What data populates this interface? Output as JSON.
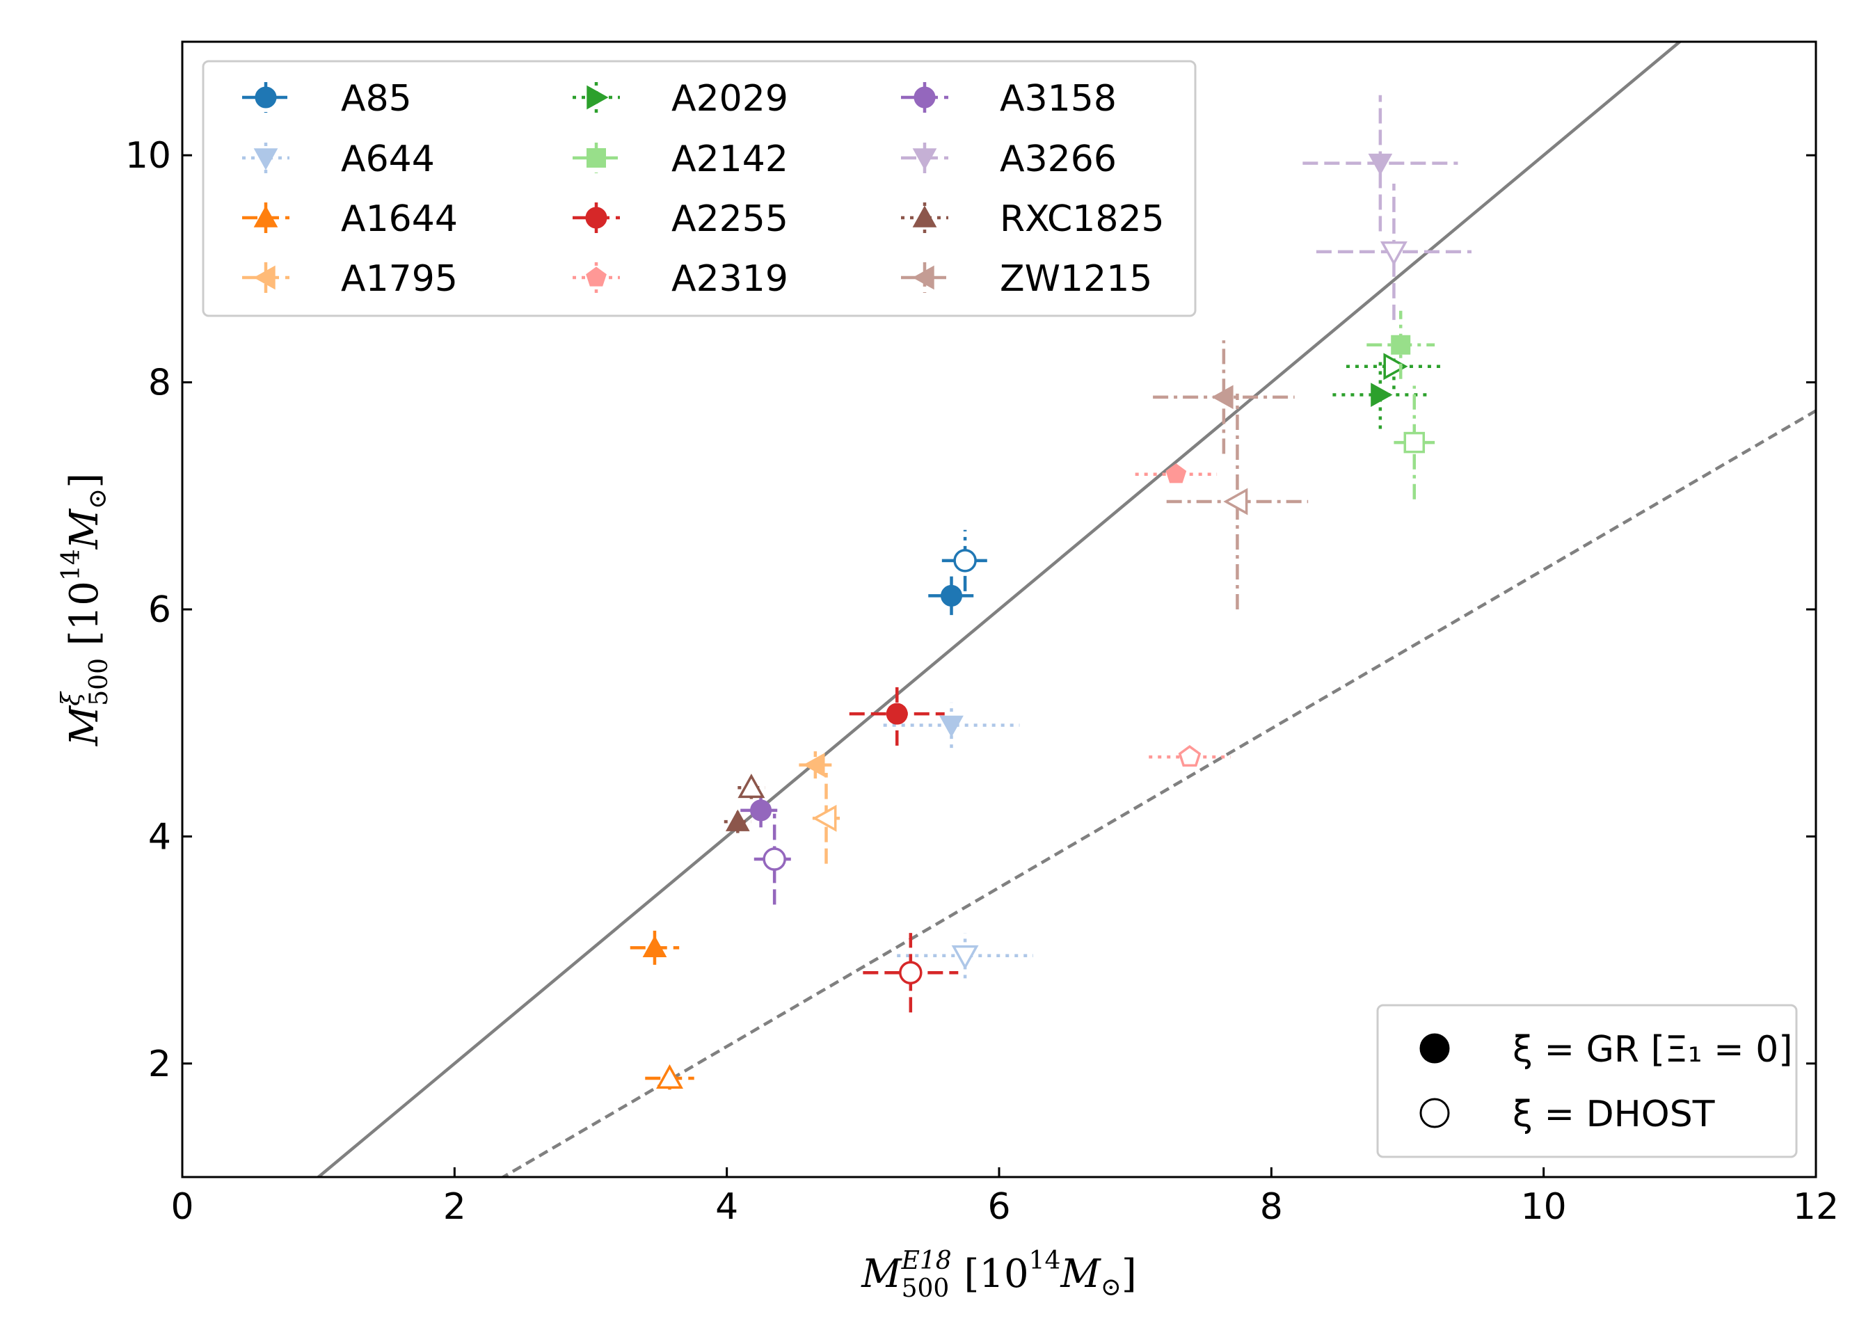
{
  "chart_data": {
    "type": "scatter",
    "xlabel": {
      "sym": "M",
      "sup": "E18",
      "sub": "500",
      "units_open": " [10",
      "units_exp": "14",
      "units_sym": "M",
      "units_sub": "⊙",
      "units_close": "]"
    },
    "ylabel": {
      "sym": "M",
      "sup": "ξ",
      "sub": "500",
      "units_open": " [10",
      "units_exp": "14",
      "units_sym": "M",
      "units_sub": "⊙",
      "units_close": "]"
    },
    "xlim": [
      0,
      12
    ],
    "ylim": [
      1.0,
      11.0
    ],
    "xticks": [
      0,
      2,
      4,
      6,
      8,
      10,
      12
    ],
    "yticks": [
      2,
      4,
      6,
      8,
      10
    ],
    "xtick_labels": [
      "0",
      "2",
      "4",
      "6",
      "8",
      "10",
      "12"
    ],
    "ytick_labels": [
      "2",
      "4",
      "6",
      "8",
      "10"
    ],
    "lines": [
      {
        "name": "one-to-one",
        "style": "solid",
        "color": "#808080",
        "slope": 1.0,
        "intercept": 0.0
      },
      {
        "name": "gr-dhost-relation",
        "style": "dashed",
        "color": "#808080",
        "slope": 0.7,
        "intercept": -0.65
      }
    ],
    "series": [
      {
        "name": "A85",
        "color": "#1f77b4",
        "marker": "circle",
        "linestyle": "dashdot",
        "gr": {
          "x": 5.65,
          "y": 6.12,
          "xerr": 0.17,
          "yerr": 0.17
        },
        "dhost": {
          "x": 5.75,
          "y": 6.43,
          "xerr": 0.17,
          "yerr": 0.27
        }
      },
      {
        "name": "A644",
        "color": "#aec7e8",
        "marker": "triangle-down",
        "linestyle": "dotted",
        "gr": {
          "x": 5.65,
          "y": 4.98,
          "xerr": 0.5,
          "yerr": 0.2
        },
        "dhost": {
          "x": 5.75,
          "y": 2.95,
          "xerr": 0.5,
          "yerr": 0.2
        }
      },
      {
        "name": "A1644",
        "color": "#ff7f0e",
        "marker": "triangle-up",
        "linestyle": "dashed",
        "gr": {
          "x": 3.47,
          "y": 3.02,
          "xerr": 0.18,
          "yerr": 0.15
        },
        "dhost": {
          "x": 3.58,
          "y": 1.87,
          "xerr": 0.18,
          "yerr": 0.1
        }
      },
      {
        "name": "A1795",
        "color": "#ffbb78",
        "marker": "triangle-left",
        "linestyle": "dashed",
        "gr": {
          "x": 4.65,
          "y": 4.63,
          "xerr": 0.12,
          "yerr": 0.12
        },
        "dhost": {
          "x": 4.73,
          "y": 4.16,
          "xerr": 0.1,
          "yerr": 0.4
        }
      },
      {
        "name": "A2029",
        "color": "#2ca02c",
        "marker": "triangle-right",
        "linestyle": "dotted",
        "gr": {
          "x": 8.8,
          "y": 7.89,
          "xerr": 0.35,
          "yerr": 0.3
        },
        "dhost": {
          "x": 8.9,
          "y": 8.14,
          "xerr": 0.35,
          "yerr": 0.2
        }
      },
      {
        "name": "A2142",
        "color": "#98df8a",
        "marker": "square",
        "linestyle": "dashdot",
        "gr": {
          "x": 8.95,
          "y": 8.33,
          "xerr": 0.25,
          "yerr": 0.3
        },
        "dhost": {
          "x": 9.05,
          "y": 7.47,
          "xerr": 0.15,
          "yerr": 0.5
        }
      },
      {
        "name": "A2255",
        "color": "#d62728",
        "marker": "circle",
        "linestyle": "dashed",
        "gr": {
          "x": 5.25,
          "y": 5.08,
          "xerr": 0.35,
          "yerr": 0.28
        },
        "dhost": {
          "x": 5.35,
          "y": 2.8,
          "xerr": 0.35,
          "yerr": 0.35
        }
      },
      {
        "name": "A2319",
        "color": "#ff9896",
        "marker": "pentagon",
        "linestyle": "dotted",
        "gr": {
          "x": 7.3,
          "y": 7.19,
          "xerr": 0.3,
          "yerr": 0.05
        },
        "dhost": {
          "x": 7.4,
          "y": 4.7,
          "xerr": 0.3,
          "yerr": 0.05
        }
      },
      {
        "name": "A3158",
        "color": "#9467bd",
        "marker": "circle",
        "linestyle": "dashed",
        "gr": {
          "x": 4.25,
          "y": 4.23,
          "xerr": 0.15,
          "yerr": 0.15
        },
        "dhost": {
          "x": 4.35,
          "y": 3.8,
          "xerr": 0.15,
          "yerr": 0.4
        }
      },
      {
        "name": "A3266",
        "color": "#c5b0d5",
        "marker": "triangle-down",
        "linestyle": "dashed",
        "gr": {
          "x": 8.8,
          "y": 9.93,
          "xerr": 0.57,
          "yerr": 0.6
        },
        "dhost": {
          "x": 8.9,
          "y": 9.15,
          "xerr": 0.57,
          "yerr": 0.6
        }
      },
      {
        "name": "RXC1825",
        "color": "#8c564b",
        "marker": "triangle-up",
        "linestyle": "dotted",
        "gr": {
          "x": 4.08,
          "y": 4.13,
          "xerr": 0.1,
          "yerr": 0.1
        },
        "dhost": {
          "x": 4.18,
          "y": 4.43,
          "xerr": 0.1,
          "yerr": 0.1
        }
      },
      {
        "name": "ZW1215",
        "color": "#c49c94",
        "marker": "triangle-left",
        "linestyle": "dashdot",
        "gr": {
          "x": 7.65,
          "y": 7.87,
          "xerr": 0.52,
          "yerr": 0.5
        },
        "dhost": {
          "x": 7.75,
          "y": 6.95,
          "xerr": 0.52,
          "yerr": 0.95
        }
      }
    ],
    "legend_placement": "upper-left",
    "legend_columns": 3,
    "style_legend": {
      "placement": "lower-right",
      "entries": [
        {
          "label": "ξ = GR [Ξ₁ = 0]",
          "filled": true
        },
        {
          "label": "ξ = DHOST",
          "filled": false
        }
      ]
    }
  }
}
